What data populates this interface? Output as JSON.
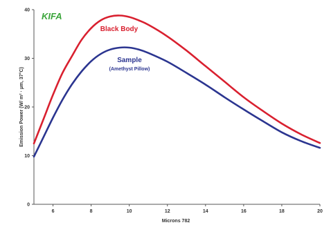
{
  "chart_data": {
    "type": "line",
    "brand_text": "KIFA",
    "xlabel": "Microns 782",
    "ylabel": "Emission Power (W/ m² · µm, 37°C)",
    "xlim": [
      5,
      20
    ],
    "ylim": [
      0,
      40
    ],
    "x_ticks": [
      "6",
      "8",
      "10",
      "12",
      "14",
      "16",
      "18",
      "20"
    ],
    "y_ticks": [
      "0",
      "10",
      "20",
      "30",
      "40"
    ],
    "x": [
      5,
      5.5,
      6,
      6.5,
      7,
      7.5,
      8,
      8.5,
      9,
      9.5,
      10,
      10.5,
      11,
      12,
      13,
      14,
      15,
      16,
      17,
      18,
      19,
      20
    ],
    "series": [
      {
        "name": "Black Body",
        "color": "#d9202f",
        "values": [
          12.5,
          17.5,
          22.5,
          27.0,
          30.5,
          33.8,
          36.2,
          37.8,
          38.6,
          38.8,
          38.5,
          37.8,
          36.9,
          34.5,
          31.6,
          28.4,
          25.2,
          22.0,
          19.2,
          16.6,
          14.4,
          12.6
        ]
      },
      {
        "name": "Sample",
        "sublabel": "(Amethyst Pillow)",
        "color": "#2b3590",
        "values": [
          9.8,
          13.8,
          17.8,
          21.5,
          24.7,
          27.3,
          29.4,
          30.9,
          31.8,
          32.2,
          32.2,
          31.8,
          31.1,
          29.3,
          27.0,
          24.6,
          22.0,
          19.5,
          17.1,
          14.8,
          13.0,
          11.6
        ]
      }
    ],
    "grid": false,
    "legend": "inline labels"
  }
}
